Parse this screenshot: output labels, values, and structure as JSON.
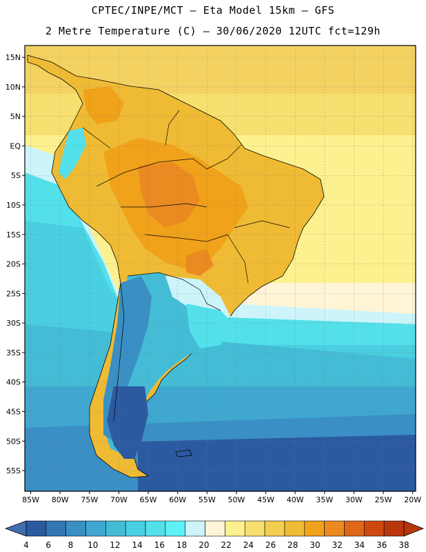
{
  "header": {
    "title_line1": "CPTEC/INPE/MCT –  Eta Model 15km – GFS",
    "title_line2": "2 Metre Temperature (C) – 30/06/2020 12UTC fct=129h"
  },
  "chart_data": {
    "type": "heatmap",
    "variable": "2 Metre Temperature",
    "units": "C",
    "lon_range": [
      -86,
      -19.5
    ],
    "lat_range": [
      -58.5,
      17
    ],
    "lat_ticks": [
      "15N",
      "10N",
      "5N",
      "EQ",
      "5S",
      "10S",
      "15S",
      "20S",
      "25S",
      "30S",
      "35S",
      "40S",
      "45S",
      "50S",
      "55S"
    ],
    "lat_values": [
      15,
      10,
      5,
      0,
      -5,
      -10,
      -15,
      -20,
      -25,
      -30,
      -35,
      -40,
      -45,
      -50,
      -55
    ],
    "lon_ticks": [
      "85W",
      "80W",
      "75W",
      "70W",
      "65W",
      "60W",
      "55W",
      "50W",
      "45W",
      "40W",
      "35W",
      "30W",
      "25W",
      "20W"
    ],
    "lon_values": [
      -85,
      -80,
      -75,
      -70,
      -65,
      -60,
      -55,
      -50,
      -45,
      -40,
      -35,
      -30,
      -25,
      -20
    ],
    "colorbar": {
      "labels": [
        "4",
        "6",
        "8",
        "10",
        "12",
        "14",
        "16",
        "18",
        "20",
        "22",
        "24",
        "26",
        "28",
        "30",
        "32",
        "34",
        "36",
        "38"
      ],
      "colors": [
        "#2c5aa0",
        "#3377b3",
        "#3a8fc4",
        "#3fa7d0",
        "#44bcd6",
        "#49cfe0",
        "#53e0ea",
        "#5ef2f6",
        "#ccf4fa",
        "#fff4d6",
        "#fcf18e",
        "#f7e070",
        "#f3ce50",
        "#efbb34",
        "#f0a21a",
        "#ea8a20",
        "#e0661a",
        "#cc4a10",
        "#b8380c"
      ],
      "under_color": "#3f6fb0",
      "over_color": "#b8360a"
    }
  }
}
